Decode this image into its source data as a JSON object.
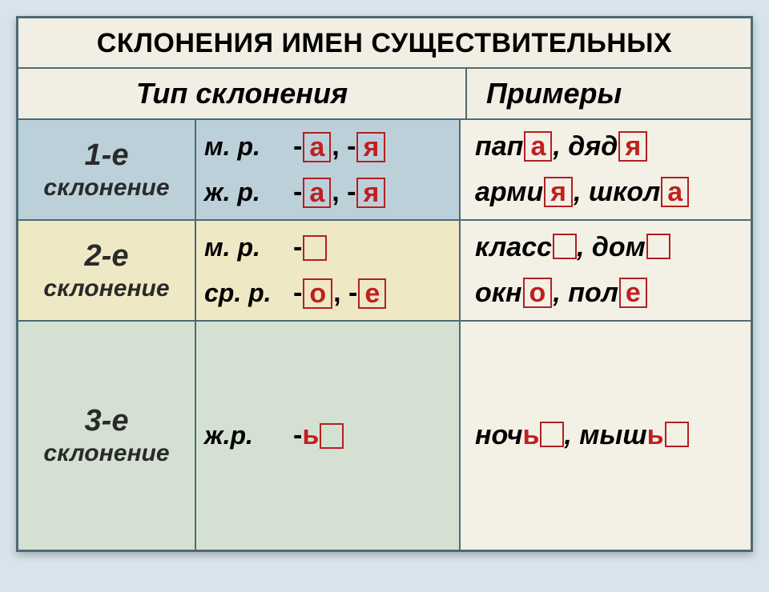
{
  "title": "СКЛОНЕНИЯ ИМЕН СУЩЕСТВИТЕЛЬНЫХ",
  "title_fontsize": 34,
  "head": {
    "type": "Тип склонения",
    "examples": "Примеры",
    "fontsize": 36
  },
  "colors": {
    "border": "#4d6a74",
    "highlight_border": "#b22020",
    "highlight_text": "#c02020",
    "row_bg": [
      "#bcd0da",
      "#efe8c4",
      "#d4e1d2"
    ],
    "light_bg": "#f3f0e6",
    "page_bg": "#d8e4ec",
    "card_bg": "#f6f4ed"
  },
  "rows": [
    {
      "label_top": "1-е",
      "label_bottom": "склонение",
      "lines": [
        {
          "gender": "м. р.",
          "endings": [
            {
              "t": "-"
            },
            {
              "hl": "а"
            },
            {
              "t": ", -"
            },
            {
              "hl": "я"
            }
          ],
          "examples": [
            {
              "t": "пап"
            },
            {
              "hl": "а"
            },
            {
              "t": ", дяд"
            },
            {
              "hl": "я"
            }
          ]
        },
        {
          "gender": "ж. р.",
          "endings": [
            {
              "t": "-"
            },
            {
              "hl": "а"
            },
            {
              "t": ", -"
            },
            {
              "hl": "я"
            }
          ],
          "examples": [
            {
              "t": "арми"
            },
            {
              "hl": "я"
            },
            {
              "t": ", школ"
            },
            {
              "hl": "а"
            }
          ]
        }
      ]
    },
    {
      "label_top": "2-е",
      "label_bottom": "склонение",
      "lines": [
        {
          "gender": "м. р.",
          "endings": [
            {
              "t": "-"
            },
            {
              "box": true
            }
          ],
          "examples": [
            {
              "t": "класс"
            },
            {
              "box": true
            },
            {
              "t": ", дом"
            },
            {
              "box": true
            }
          ]
        },
        {
          "gender": "ср. р.",
          "endings": [
            {
              "t": "-"
            },
            {
              "hl": "о"
            },
            {
              "t": ", -"
            },
            {
              "hl": "е"
            }
          ],
          "examples": [
            {
              "t": "окн"
            },
            {
              "hl": "о"
            },
            {
              "t": ", пол"
            },
            {
              "hl": "е"
            }
          ]
        }
      ]
    },
    {
      "label_top": "3-е",
      "label_bottom": "склонение",
      "lines": [
        {
          "gender": "ж.р.",
          "endings": [
            {
              "t": "-"
            },
            {
              "red": "ь"
            },
            {
              "box": true
            }
          ],
          "examples": [
            {
              "t": "ноч"
            },
            {
              "red": "ь"
            },
            {
              "box": true
            },
            {
              "t": ", мыш"
            },
            {
              "red": "ь"
            },
            {
              "box": true
            }
          ]
        }
      ]
    }
  ]
}
